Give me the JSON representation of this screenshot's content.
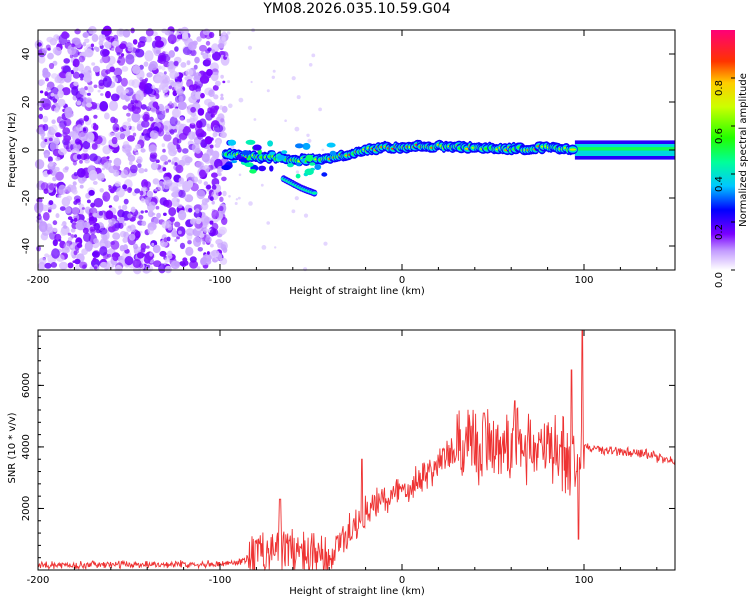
{
  "title": "YM08.2026.035.10.59.G04",
  "chart_data": [
    {
      "type": "heatmap",
      "xlabel": "Height of straight line (km)",
      "ylabel": "Frequency (Hz)",
      "xlim": [
        -200,
        150
      ],
      "ylim": [
        -50,
        50
      ],
      "xticks": [
        -200,
        -100,
        0,
        100
      ],
      "yticks": [
        -40,
        -20,
        0,
        20,
        40
      ],
      "noise_region_x": [
        -200,
        -97
      ],
      "signal_track": {
        "x": [
          -97,
          -90,
          -80,
          -70,
          -60,
          -50,
          -40,
          -30,
          -20,
          -10,
          0,
          10,
          20,
          40,
          60,
          80,
          95,
          100,
          150
        ],
        "freq": [
          -1.5,
          -2,
          -3,
          -3,
          -4,
          -4,
          -3.5,
          -2,
          0,
          1,
          1,
          1.5,
          1.5,
          1,
          0.5,
          1,
          0,
          0.5,
          0.5
        ]
      },
      "secondary_track": {
        "x": [
          -65,
          -60,
          -55,
          -48
        ],
        "freq": [
          -12,
          -14,
          -16,
          -18
        ]
      },
      "colorbar": {
        "label": "Normalized spectral amplitude",
        "min": 0,
        "max": 1,
        "ticks": [
          "0.0",
          "0.2",
          "0.4",
          "0.6",
          "0.8"
        ]
      }
    },
    {
      "type": "line",
      "xlabel": "Height of straight line (km)",
      "ylabel": "SNR (10 * v/v)",
      "xlim": [
        -200,
        150
      ],
      "ylim": [
        0,
        7800
      ],
      "xticks": [
        -200,
        -100,
        0,
        100
      ],
      "yticks": [
        2000,
        4000,
        6000
      ],
      "color": "#ee3333",
      "series": [
        {
          "name": "SNR",
          "x": [
            -200,
            -150,
            -100,
            -90,
            -80,
            -70,
            -60,
            -50,
            -40,
            -35,
            -30,
            -25,
            -20,
            -10,
            0,
            10,
            20,
            30,
            40,
            50,
            60,
            70,
            80,
            90,
            95,
            98,
            100,
            110,
            130,
            150
          ],
          "values": [
            150,
            180,
            200,
            250,
            500,
            800,
            600,
            400,
            200,
            900,
            1200,
            1400,
            1800,
            2300,
            2600,
            3000,
            3500,
            3800,
            4000,
            4100,
            4200,
            4000,
            3900,
            3800,
            3600,
            3500,
            4000,
            3900,
            3800,
            3550
          ]
        }
      ],
      "spikes": [
        {
          "x": -67,
          "value": 2300
        },
        {
          "x": -22,
          "value": 3600
        },
        {
          "x": 45,
          "value": 5100
        },
        {
          "x": 62,
          "value": 5500
        },
        {
          "x": 93,
          "value": 6500
        },
        {
          "x": 99,
          "value": 7800
        },
        {
          "x": 97,
          "value": 1000
        }
      ]
    }
  ]
}
